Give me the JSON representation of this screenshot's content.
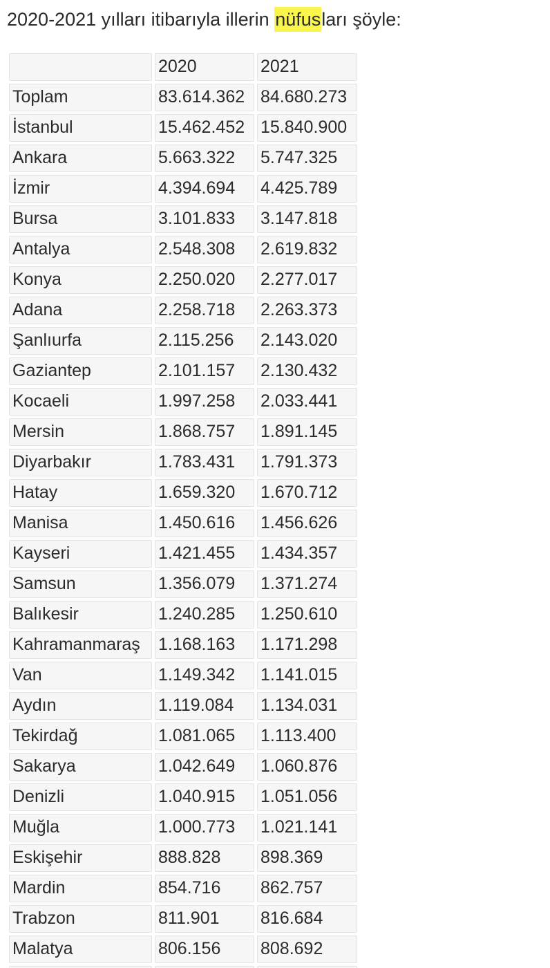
{
  "title": {
    "pre": "2020-2021 yılları itibarıyla illerin ",
    "highlight": "nüfus",
    "post": "ları şöyle:"
  },
  "colors": {
    "highlight_yellow": "#faf54d",
    "cell_background": "#f6f6f6",
    "cell_border": "#e3e3e3",
    "text": "#2b2b2b"
  },
  "table": {
    "columns": [
      "",
      "2020",
      "2021"
    ],
    "rows": [
      {
        "name": "Toplam",
        "y2020": "83.614.362",
        "y2021": "84.680.273"
      },
      {
        "name": "İstanbul",
        "y2020": "15.462.452",
        "y2021": "15.840.900"
      },
      {
        "name": "Ankara",
        "y2020": "5.663.322",
        "y2021": "5.747.325"
      },
      {
        "name": "İzmir",
        "y2020": "4.394.694",
        "y2021": "4.425.789"
      },
      {
        "name": "Bursa",
        "y2020": "3.101.833",
        "y2021": "3.147.818"
      },
      {
        "name": "Antalya",
        "y2020": "2.548.308",
        "y2021": "2.619.832"
      },
      {
        "name": "Konya",
        "y2020": "2.250.020",
        "y2021": "2.277.017"
      },
      {
        "name": "Adana",
        "y2020": "2.258.718",
        "y2021": "2.263.373"
      },
      {
        "name": "Şanlıurfa",
        "y2020": "2.115.256",
        "y2021": "2.143.020"
      },
      {
        "name": "Gaziantep",
        "y2020": "2.101.157",
        "y2021": "2.130.432"
      },
      {
        "name": "Kocaeli",
        "y2020": "1.997.258",
        "y2021": "2.033.441"
      },
      {
        "name": "Mersin",
        "y2020": "1.868.757",
        "y2021": "1.891.145"
      },
      {
        "name": "Diyarbakır",
        "y2020": "1.783.431",
        "y2021": "1.791.373"
      },
      {
        "name": "Hatay",
        "y2020": "1.659.320",
        "y2021": "1.670.712"
      },
      {
        "name": "Manisa",
        "y2020": "1.450.616",
        "y2021": "1.456.626"
      },
      {
        "name": "Kayseri",
        "y2020": "1.421.455",
        "y2021": "1.434.357"
      },
      {
        "name": "Samsun",
        "y2020": "1.356.079",
        "y2021": "1.371.274"
      },
      {
        "name": "Balıkesir",
        "y2020": "1.240.285",
        "y2021": "1.250.610"
      },
      {
        "name": "Kahramanmaraş",
        "y2020": "1.168.163",
        "y2021": "1.171.298"
      },
      {
        "name": "Van",
        "y2020": "1.149.342",
        "y2021": "1.141.015"
      },
      {
        "name": "Aydın",
        "y2020": "1.119.084",
        "y2021": "1.134.031"
      },
      {
        "name": "Tekirdağ",
        "y2020": "1.081.065",
        "y2021": "1.113.400"
      },
      {
        "name": "Sakarya",
        "y2020": "1.042.649",
        "y2021": "1.060.876"
      },
      {
        "name": "Denizli",
        "y2020": "1.040.915",
        "y2021": "1.051.056"
      },
      {
        "name": "Muğla",
        "y2020": "1.000.773",
        "y2021": "1.021.141"
      },
      {
        "name": "Eskişehir",
        "y2020": "888.828",
        "y2021": "898.369"
      },
      {
        "name": "Mardin",
        "y2020": "854.716",
        "y2021": "862.757"
      },
      {
        "name": "Trabzon",
        "y2020": "811.901",
        "y2021": "816.684"
      },
      {
        "name": "Malatya",
        "y2020": "806.156",
        "y2021": "808.692"
      }
    ],
    "has_partial_row_at_bottom": true
  }
}
